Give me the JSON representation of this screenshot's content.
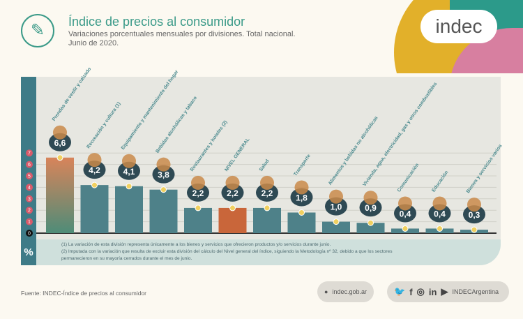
{
  "header": {
    "title": "Índice de precios al consumidor",
    "subtitle": "Variaciones porcentuales mensuales por divisiones. Total nacional.",
    "date": "Junio de 2020.",
    "logo": "indec",
    "icon": "notepad-pencil-icon"
  },
  "chart_data": {
    "type": "bar",
    "ylabel": "%",
    "ylim": [
      0,
      7
    ],
    "yticks": [
      0,
      1,
      2,
      3,
      4,
      5,
      6,
      7
    ],
    "categories": [
      "Prendas de vestir y calzado",
      "Recreación y cultura (1)",
      "Equipamiento y mantenimiento del hogar",
      "Bebidas alcohólicas y tabaco",
      "Restaurantes y hoteles (2)",
      "NIVEL GENERAL",
      "Salud",
      "Transporte",
      "Alimentos y bebidas no alcohólicas",
      "Vivienda, agua, electricidad, gas y otros combustibles",
      "Comunicación",
      "Educación",
      "Bienes y servicios varios"
    ],
    "values": [
      6.6,
      4.2,
      4.1,
      3.8,
      2.2,
      2.2,
      2.2,
      1.8,
      1.0,
      0.9,
      0.4,
      0.4,
      0.3
    ],
    "value_labels": [
      "6,6",
      "4,2",
      "4,1",
      "3,8",
      "2,2",
      "2,2",
      "2,2",
      "1,8",
      "1,0",
      "0,9",
      "0,4",
      "0,4",
      "0,3"
    ],
    "colors": {
      "bar": "#4e8189",
      "highlight": "#d8845a",
      "general": "#c9663a",
      "badge": "#2f4a54"
    }
  },
  "notes": [
    "(1) La variación de esta división representa únicamente a los bienes y servicios que ofrecieron productos y/o servicios durante junio.",
    "(2) Imputada con la variación que resulta de excluir esta división del cálculo del Nivel general del índice, siguiendo la Metodología nº 32, debido a que los sectores",
    "permanecieron en su mayoría cerrados durante el mes de junio."
  ],
  "footer": {
    "source": "Fuente: INDEC-Índice de precios al consumidor",
    "web": "indec.gob.ar",
    "social": "INDECArgentina"
  }
}
